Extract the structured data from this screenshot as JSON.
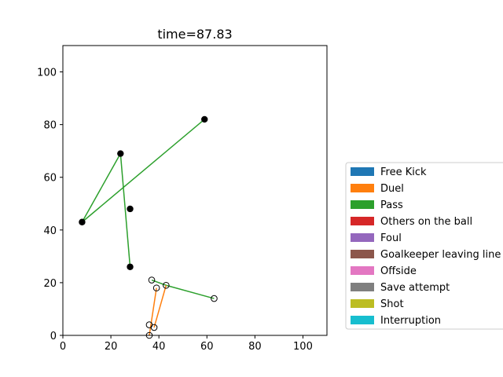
{
  "chart_data": {
    "type": "scatter",
    "title": "time=87.83",
    "xlim": [
      0,
      110
    ],
    "ylim": [
      0,
      110
    ],
    "xticks": [
      0,
      20,
      40,
      60,
      80,
      100
    ],
    "yticks": [
      0,
      20,
      40,
      60,
      80,
      100
    ],
    "grid": false,
    "legend_position": "right",
    "legend": [
      {
        "label": "Free Kick",
        "color": "#1f77b4"
      },
      {
        "label": "Duel",
        "color": "#ff7f0e"
      },
      {
        "label": "Pass",
        "color": "#2ca02c"
      },
      {
        "label": "Others on the ball",
        "color": "#d62728"
      },
      {
        "label": "Foul",
        "color": "#9467bd"
      },
      {
        "label": "Goalkeeper leaving line",
        "color": "#8c564b"
      },
      {
        "label": "Offside",
        "color": "#e377c2"
      },
      {
        "label": "Save attempt",
        "color": "#7f7f7f"
      },
      {
        "label": "Shot",
        "color": "#bcbd22"
      },
      {
        "label": "Interruption",
        "color": "#17becf"
      }
    ],
    "segments": [
      {
        "type": "Pass",
        "color": "#2ca02c",
        "x": [
          59,
          8
        ],
        "y": [
          82,
          43
        ]
      },
      {
        "type": "Pass",
        "color": "#2ca02c",
        "x": [
          8,
          24
        ],
        "y": [
          43,
          69
        ]
      },
      {
        "type": "Pass",
        "color": "#2ca02c",
        "x": [
          24,
          28
        ],
        "y": [
          69,
          26
        ]
      },
      {
        "type": "Pass",
        "color": "#2ca02c",
        "x": [
          37,
          43
        ],
        "y": [
          21,
          19
        ]
      },
      {
        "type": "Pass",
        "color": "#2ca02c",
        "x": [
          43,
          63
        ],
        "y": [
          19,
          14
        ]
      },
      {
        "type": "Duel",
        "color": "#ff7f0e",
        "x": [
          36,
          39
        ],
        "y": [
          0,
          18
        ]
      },
      {
        "type": "Duel",
        "color": "#ff7f0e",
        "x": [
          38,
          43
        ],
        "y": [
          3,
          19
        ]
      }
    ],
    "points_filled": [
      {
        "x": 59,
        "y": 82
      },
      {
        "x": 24,
        "y": 69
      },
      {
        "x": 28,
        "y": 48
      },
      {
        "x": 8,
        "y": 43
      },
      {
        "x": 28,
        "y": 26
      }
    ],
    "points_open": [
      {
        "x": 37,
        "y": 21
      },
      {
        "x": 43,
        "y": 19
      },
      {
        "x": 39,
        "y": 18
      },
      {
        "x": 63,
        "y": 14
      },
      {
        "x": 36,
        "y": 4
      },
      {
        "x": 38,
        "y": 3
      },
      {
        "x": 36,
        "y": 0
      }
    ]
  }
}
